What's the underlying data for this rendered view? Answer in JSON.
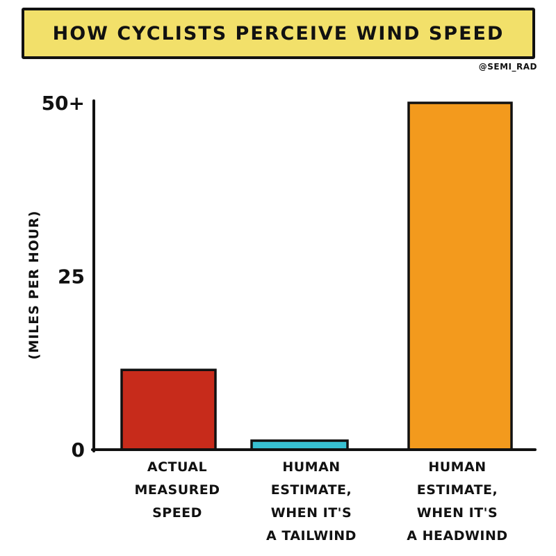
{
  "header": {
    "title": "HOW CYCLISTS PERCEIVE WIND SPEED",
    "credit": "@SEMI_RAD",
    "title_bg": "#f2e06a"
  },
  "chart_data": {
    "type": "bar",
    "title": "HOW CYCLISTS PERCEIVE WIND SPEED",
    "ylabel": "(MILES PER HOUR)",
    "xlabel": "",
    "ylim": [
      0,
      50
    ],
    "yticks": [
      {
        "value": 0,
        "label": "0"
      },
      {
        "value": 25,
        "label": "25"
      },
      {
        "value": 50,
        "label": "50+"
      }
    ],
    "grid": false,
    "categories": [
      [
        "ACTUAL",
        "MEASURED",
        "SPEED"
      ],
      [
        "HUMAN",
        "ESTIMATE,",
        "WHEN IT'S",
        "A TAILWIND"
      ],
      [
        "HUMAN",
        "ESTIMATE,",
        "WHEN IT'S",
        "A HEADWIND"
      ]
    ],
    "values": [
      11.5,
      1.3,
      50
    ],
    "colors": [
      "#c72b1b",
      "#38c0d2",
      "#f39a1d"
    ]
  }
}
